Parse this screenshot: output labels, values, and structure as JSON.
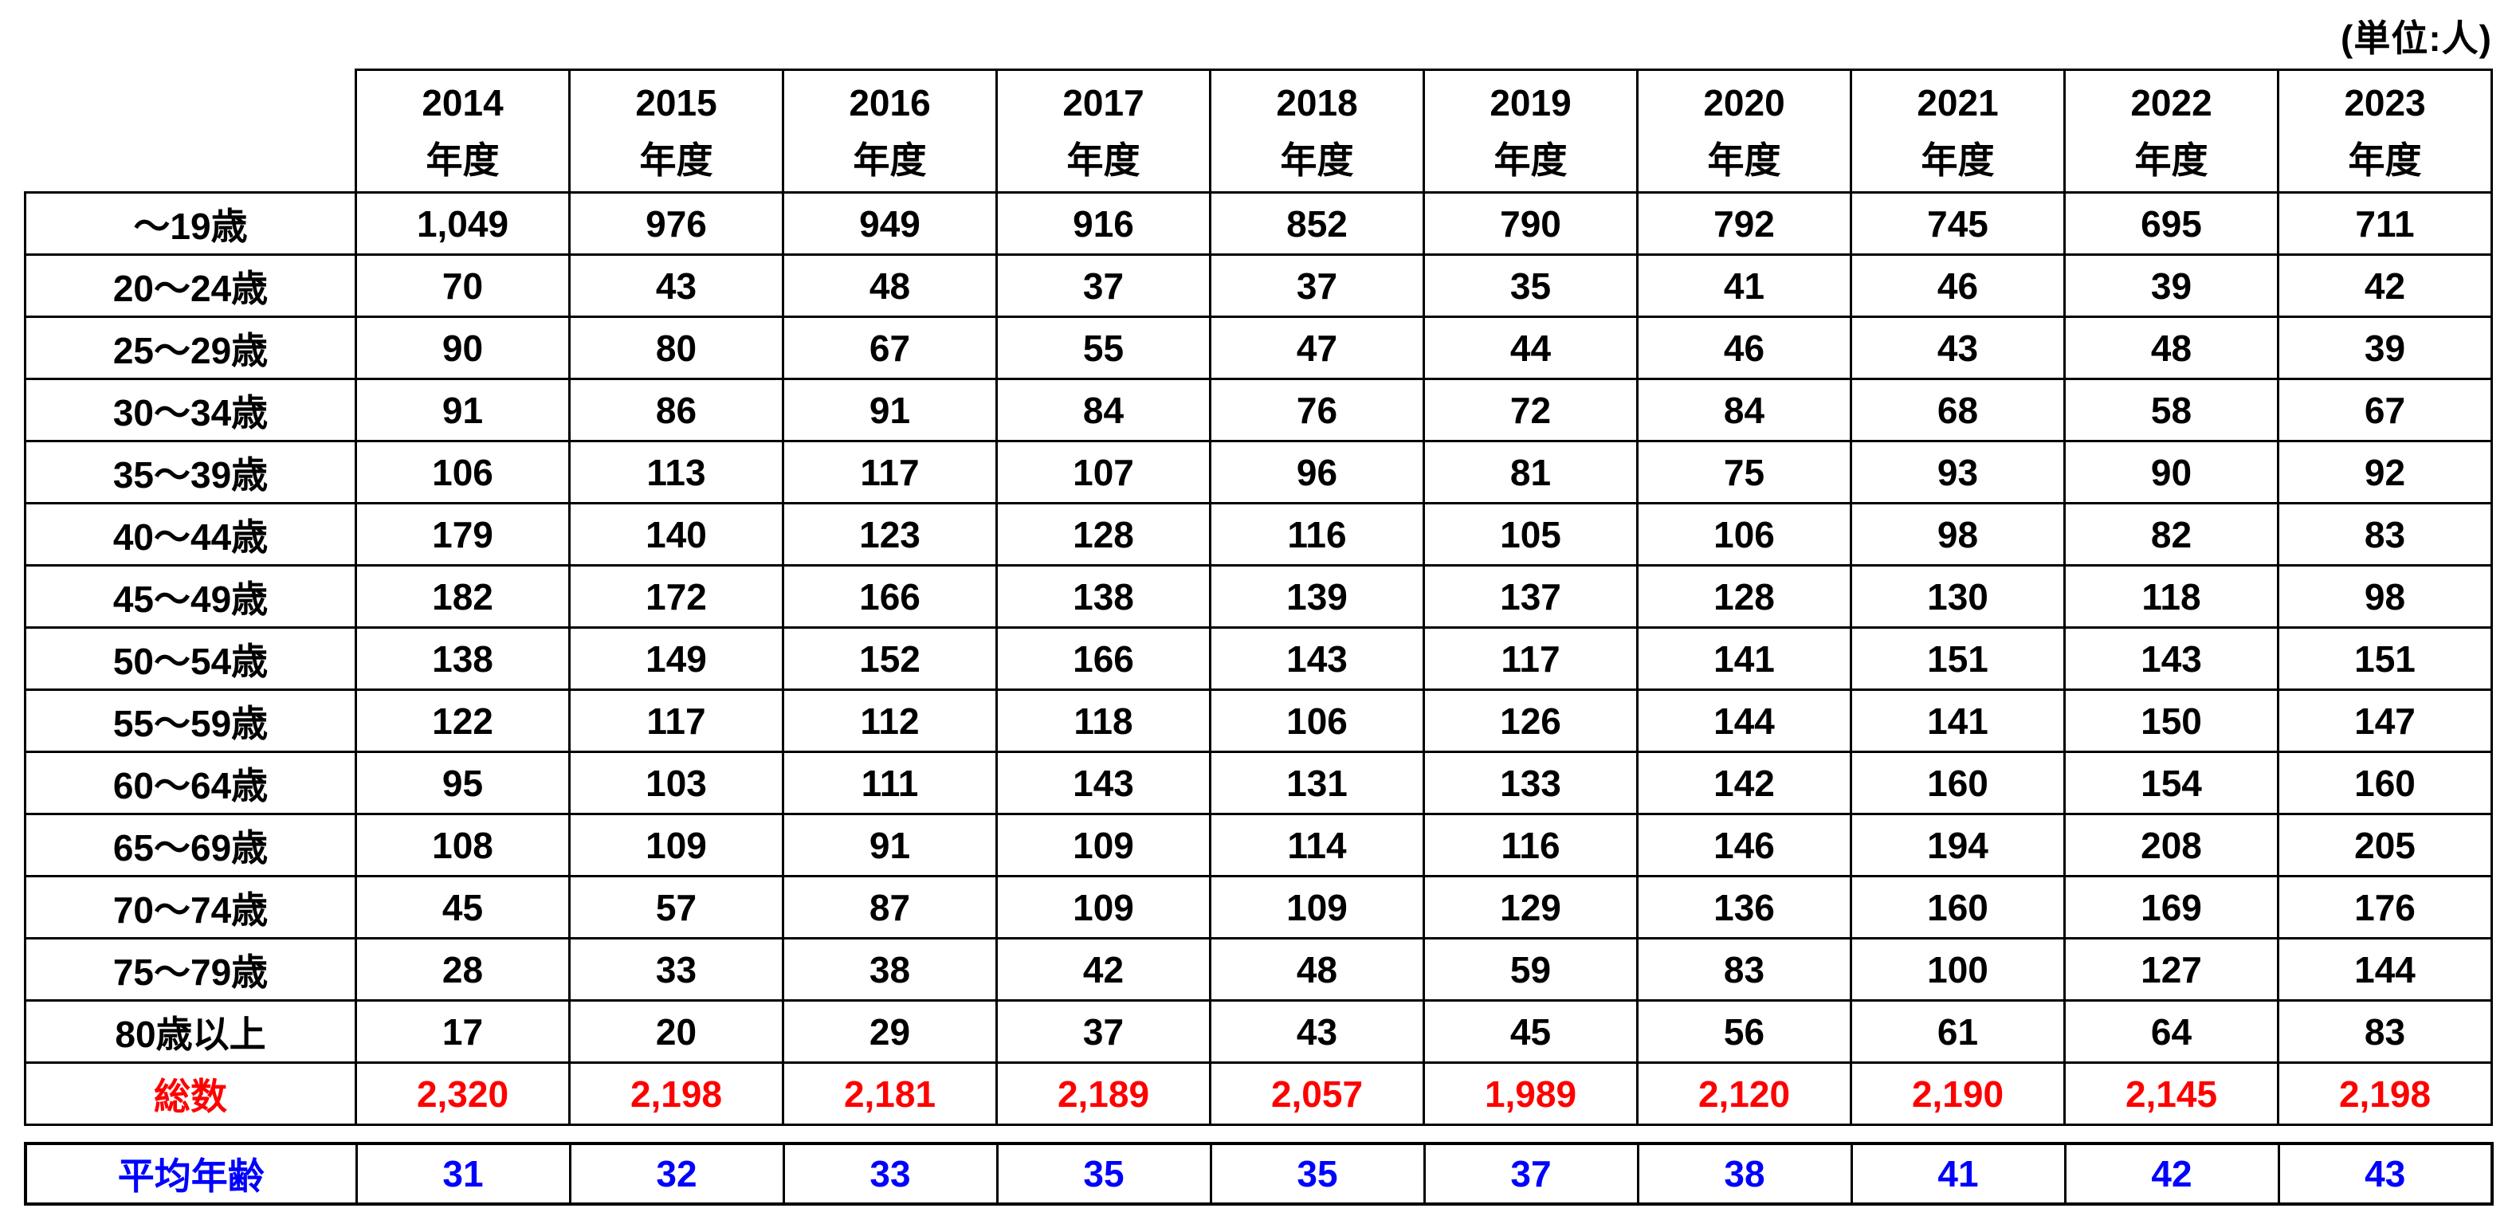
{
  "chart_data": {
    "type": "table",
    "unit_label": "(単位:人)",
    "column_header_line2": "年度",
    "years": [
      "2014",
      "2015",
      "2016",
      "2017",
      "2018",
      "2019",
      "2020",
      "2021",
      "2022",
      "2023"
    ],
    "age_rows": [
      {
        "label": "〜19歳",
        "values": [
          "1,049",
          "976",
          "949",
          "916",
          "852",
          "790",
          "792",
          "745",
          "695",
          "711"
        ]
      },
      {
        "label": "20〜24歳",
        "values": [
          "70",
          "43",
          "48",
          "37",
          "37",
          "35",
          "41",
          "46",
          "39",
          "42"
        ]
      },
      {
        "label": "25〜29歳",
        "values": [
          "90",
          "80",
          "67",
          "55",
          "47",
          "44",
          "46",
          "43",
          "48",
          "39"
        ]
      },
      {
        "label": "30〜34歳",
        "values": [
          "91",
          "86",
          "91",
          "84",
          "76",
          "72",
          "84",
          "68",
          "58",
          "67"
        ]
      },
      {
        "label": "35〜39歳",
        "values": [
          "106",
          "113",
          "117",
          "107",
          "96",
          "81",
          "75",
          "93",
          "90",
          "92"
        ]
      },
      {
        "label": "40〜44歳",
        "values": [
          "179",
          "140",
          "123",
          "128",
          "116",
          "105",
          "106",
          "98",
          "82",
          "83"
        ]
      },
      {
        "label": "45〜49歳",
        "values": [
          "182",
          "172",
          "166",
          "138",
          "139",
          "137",
          "128",
          "130",
          "118",
          "98"
        ]
      },
      {
        "label": "50〜54歳",
        "values": [
          "138",
          "149",
          "152",
          "166",
          "143",
          "117",
          "141",
          "151",
          "143",
          "151"
        ]
      },
      {
        "label": "55〜59歳",
        "values": [
          "122",
          "117",
          "112",
          "118",
          "106",
          "126",
          "144",
          "141",
          "150",
          "147"
        ]
      },
      {
        "label": "60〜64歳",
        "values": [
          "95",
          "103",
          "111",
          "143",
          "131",
          "133",
          "142",
          "160",
          "154",
          "160"
        ]
      },
      {
        "label": "65〜69歳",
        "values": [
          "108",
          "109",
          "91",
          "109",
          "114",
          "116",
          "146",
          "194",
          "208",
          "205"
        ]
      },
      {
        "label": "70〜74歳",
        "values": [
          "45",
          "57",
          "87",
          "109",
          "109",
          "129",
          "136",
          "160",
          "169",
          "176"
        ]
      },
      {
        "label": "75〜79歳",
        "values": [
          "28",
          "33",
          "38",
          "42",
          "48",
          "59",
          "83",
          "100",
          "127",
          "144"
        ]
      },
      {
        "label": "80歳以上",
        "values": [
          "17",
          "20",
          "29",
          "37",
          "43",
          "45",
          "56",
          "61",
          "64",
          "83"
        ]
      }
    ],
    "total_row": {
      "label": "総数",
      "values": [
        "2,320",
        "2,198",
        "2,181",
        "2,189",
        "2,057",
        "1,989",
        "2,120",
        "2,190",
        "2,145",
        "2,198"
      ],
      "color": "#FF0000"
    },
    "average_row": {
      "label": "平均年齢",
      "values": [
        "31",
        "32",
        "33",
        "35",
        "35",
        "37",
        "38",
        "41",
        "42",
        "43"
      ],
      "color": "#0000FF"
    },
    "layout_hints": {
      "grid": true,
      "text_color": "#000000",
      "border_color": "#000000",
      "background": "#FFFFFF"
    }
  }
}
